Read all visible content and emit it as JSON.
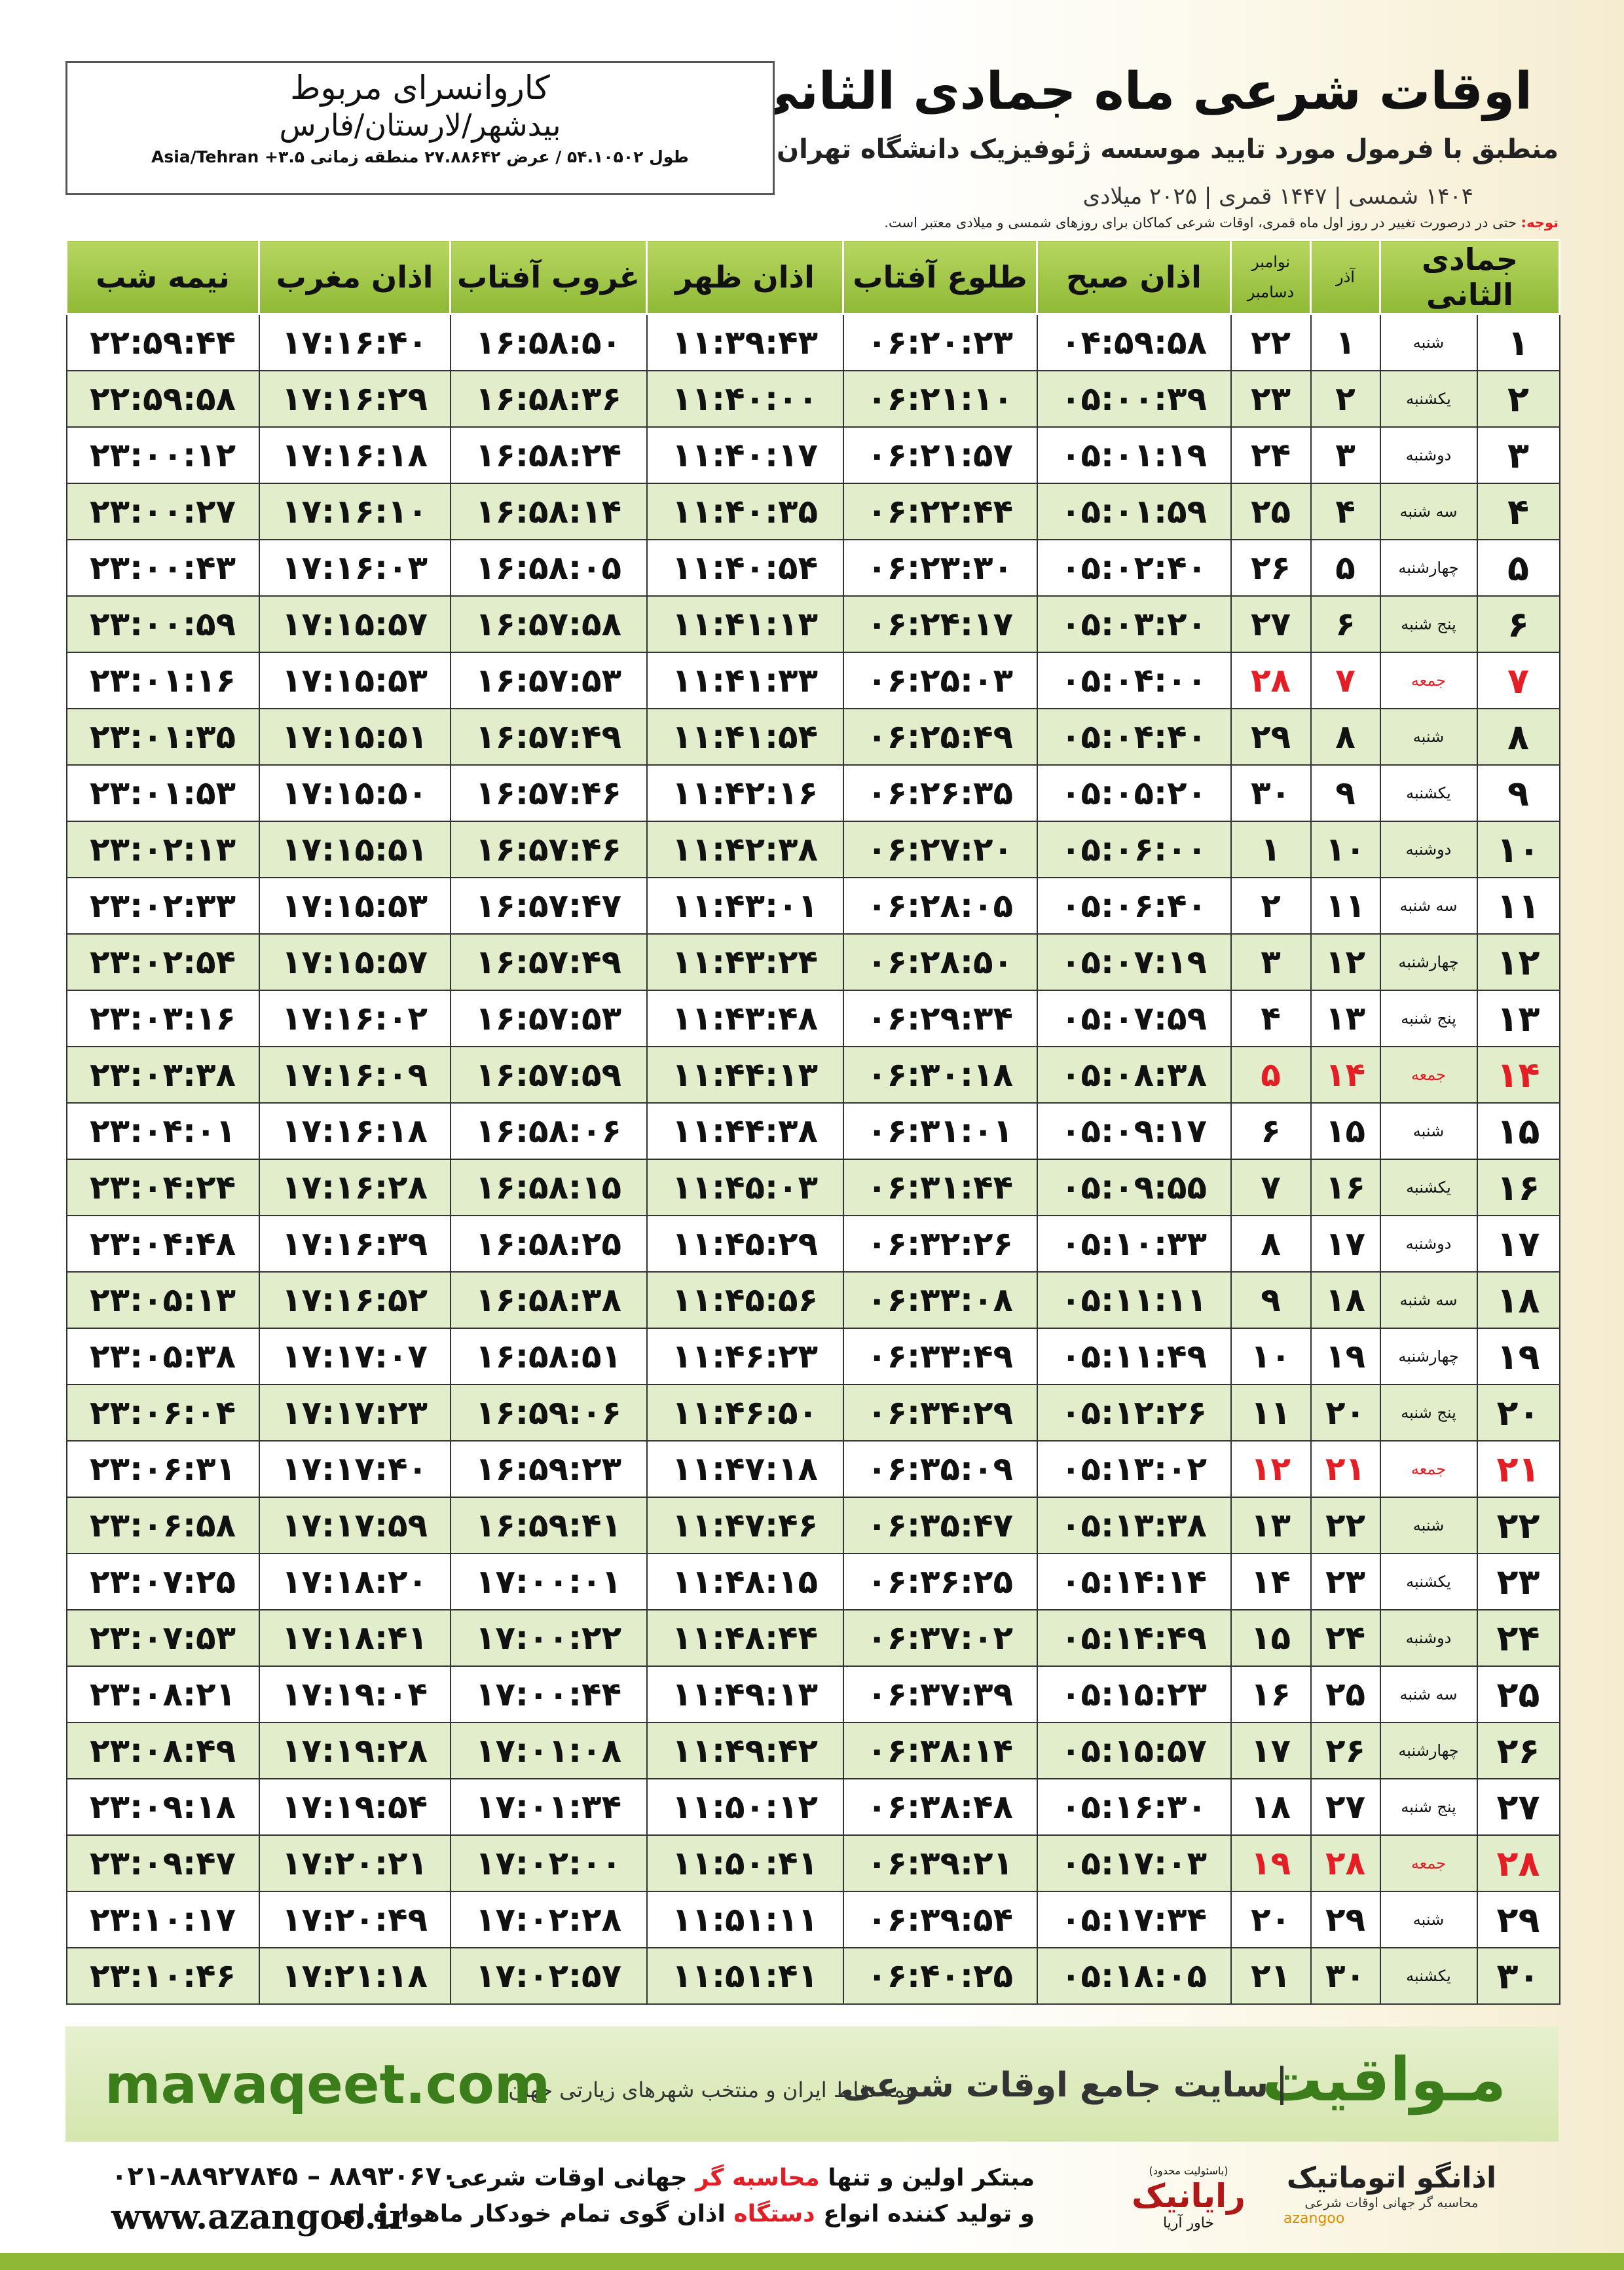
{
  "header": {
    "title": "اوقات شرعی ماه جمادی الثانی",
    "subtitle": "منطبق با فرمول مورد تایید موسسه ژئوفیزیک دانشگاه تهران",
    "years": "۱۴۰۴ شمسی | ۱۴۴۷ قمری | ۲۰۲۵ میلادی"
  },
  "location": {
    "name": "کاروانسرای مربوط",
    "region": "بیدشهر/لارستان/فارس",
    "coords": "طول ۵۴.۱۰۵۰۲ / عرض ۲۷.۸۸۶۴۲ منطقه زمانی ۳.۵+ Asia/Tehran"
  },
  "note": {
    "label": "توجه:",
    "text": "حتی در درصورت تغییر در روز اول ماه قمری، اوقات شرعی کماکان برای روزهای شمسی و میلادی معتبر است."
  },
  "table": {
    "headers": {
      "month": "جمادی الثانی",
      "azar": "آذر",
      "greg_top": "نوامبر",
      "greg_bottom": "دسامبر",
      "times": [
        "اذان صبح",
        "طلوع آفتاب",
        "اذان ظهر",
        "غروب آفتاب",
        "اذان مغرب",
        "نیمه شب"
      ]
    },
    "rows": [
      {
        "cells": [
          "۱",
          "شنبه",
          "۱",
          "۲۲",
          "۰۴:۵۹:۵۸",
          "۰۶:۲۰:۲۳",
          "۱۱:۳۹:۴۳",
          "۱۶:۵۸:۵۰",
          "۱۷:۱۶:۴۰",
          "۲۲:۵۹:۴۴"
        ]
      },
      {
        "cells": [
          "۲",
          "یکشنبه",
          "۲",
          "۲۳",
          "۰۵:۰۰:۳۹",
          "۰۶:۲۱:۱۰",
          "۱۱:۴۰:۰۰",
          "۱۶:۵۸:۳۶",
          "۱۷:۱۶:۲۹",
          "۲۲:۵۹:۵۸"
        ]
      },
      {
        "cells": [
          "۳",
          "دوشنبه",
          "۳",
          "۲۴",
          "۰۵:۰۱:۱۹",
          "۰۶:۲۱:۵۷",
          "۱۱:۴۰:۱۷",
          "۱۶:۵۸:۲۴",
          "۱۷:۱۶:۱۸",
          "۲۳:۰۰:۱۲"
        ]
      },
      {
        "cells": [
          "۴",
          "سه شنبه",
          "۴",
          "۲۵",
          "۰۵:۰۱:۵۹",
          "۰۶:۲۲:۴۴",
          "۱۱:۴۰:۳۵",
          "۱۶:۵۸:۱۴",
          "۱۷:۱۶:۱۰",
          "۲۳:۰۰:۲۷"
        ]
      },
      {
        "cells": [
          "۵",
          "چهارشنبه",
          "۵",
          "۲۶",
          "۰۵:۰۲:۴۰",
          "۰۶:۲۳:۳۰",
          "۱۱:۴۰:۵۴",
          "۱۶:۵۸:۰۵",
          "۱۷:۱۶:۰۳",
          "۲۳:۰۰:۴۳"
        ]
      },
      {
        "cells": [
          "۶",
          "پنج شنبه",
          "۶",
          "۲۷",
          "۰۵:۰۳:۲۰",
          "۰۶:۲۴:۱۷",
          "۱۱:۴۱:۱۳",
          "۱۶:۵۷:۵۸",
          "۱۷:۱۵:۵۷",
          "۲۳:۰۰:۵۹"
        ]
      },
      {
        "cells": [
          "۷",
          "جمعه",
          "۷",
          "۲۸",
          "۰۵:۰۴:۰۰",
          "۰۶:۲۵:۰۳",
          "۱۱:۴۱:۳۳",
          "۱۶:۵۷:۵۳",
          "۱۷:۱۵:۵۳",
          "۲۳:۰۱:۱۶"
        ],
        "color": "#e31e24"
      },
      {
        "cells": [
          "۸",
          "شنبه",
          "۸",
          "۲۹",
          "۰۵:۰۴:۴۰",
          "۰۶:۲۵:۴۹",
          "۱۱:۴۱:۵۴",
          "۱۶:۵۷:۴۹",
          "۱۷:۱۵:۵۱",
          "۲۳:۰۱:۳۵"
        ]
      },
      {
        "cells": [
          "۹",
          "یکشنبه",
          "۹",
          "۳۰",
          "۰۵:۰۵:۲۰",
          "۰۶:۲۶:۳۵",
          "۱۱:۴۲:۱۶",
          "۱۶:۵۷:۴۶",
          "۱۷:۱۵:۵۰",
          "۲۳:۰۱:۵۳"
        ]
      },
      {
        "cells": [
          "۱۰",
          "دوشنبه",
          "۱۰",
          "۱",
          "۰۵:۰۶:۰۰",
          "۰۶:۲۷:۲۰",
          "۱۱:۴۲:۳۸",
          "۱۶:۵۷:۴۶",
          "۱۷:۱۵:۵۱",
          "۲۳:۰۲:۱۳"
        ]
      },
      {
        "cells": [
          "۱۱",
          "سه شنبه",
          "۱۱",
          "۲",
          "۰۵:۰۶:۴۰",
          "۰۶:۲۸:۰۵",
          "۱۱:۴۳:۰۱",
          "۱۶:۵۷:۴۷",
          "۱۷:۱۵:۵۳",
          "۲۳:۰۲:۳۳"
        ]
      },
      {
        "cells": [
          "۱۲",
          "چهارشنبه",
          "۱۲",
          "۳",
          "۰۵:۰۷:۱۹",
          "۰۶:۲۸:۵۰",
          "۱۱:۴۳:۲۴",
          "۱۶:۵۷:۴۹",
          "۱۷:۱۵:۵۷",
          "۲۳:۰۲:۵۴"
        ]
      },
      {
        "cells": [
          "۱۳",
          "پنج شنبه",
          "۱۳",
          "۴",
          "۰۵:۰۷:۵۹",
          "۰۶:۲۹:۳۴",
          "۱۱:۴۳:۴۸",
          "۱۶:۵۷:۵۳",
          "۱۷:۱۶:۰۲",
          "۲۳:۰۳:۱۶"
        ]
      },
      {
        "cells": [
          "۱۴",
          "جمعه",
          "۱۴",
          "۵",
          "۰۵:۰۸:۳۸",
          "۰۶:۳۰:۱۸",
          "۱۱:۴۴:۱۳",
          "۱۶:۵۷:۵۹",
          "۱۷:۱۶:۰۹",
          "۲۳:۰۳:۳۸"
        ],
        "color": "#e31e24"
      },
      {
        "cells": [
          "۱۵",
          "شنبه",
          "۱۵",
          "۶",
          "۰۵:۰۹:۱۷",
          "۰۶:۳۱:۰۱",
          "۱۱:۴۴:۳۸",
          "۱۶:۵۸:۰۶",
          "۱۷:۱۶:۱۸",
          "۲۳:۰۴:۰۱"
        ]
      },
      {
        "cells": [
          "۱۶",
          "یکشنبه",
          "۱۶",
          "۷",
          "۰۵:۰۹:۵۵",
          "۰۶:۳۱:۴۴",
          "۱۱:۴۵:۰۳",
          "۱۶:۵۸:۱۵",
          "۱۷:۱۶:۲۸",
          "۲۳:۰۴:۲۴"
        ]
      },
      {
        "cells": [
          "۱۷",
          "دوشنبه",
          "۱۷",
          "۸",
          "۰۵:۱۰:۳۳",
          "۰۶:۳۲:۲۶",
          "۱۱:۴۵:۲۹",
          "۱۶:۵۸:۲۵",
          "۱۷:۱۶:۳۹",
          "۲۳:۰۴:۴۸"
        ]
      },
      {
        "cells": [
          "۱۸",
          "سه شنبه",
          "۱۸",
          "۹",
          "۰۵:۱۱:۱۱",
          "۰۶:۳۳:۰۸",
          "۱۱:۴۵:۵۶",
          "۱۶:۵۸:۳۸",
          "۱۷:۱۶:۵۲",
          "۲۳:۰۵:۱۳"
        ]
      },
      {
        "cells": [
          "۱۹",
          "چهارشنبه",
          "۱۹",
          "۱۰",
          "۰۵:۱۱:۴۹",
          "۰۶:۳۳:۴۹",
          "۱۱:۴۶:۲۳",
          "۱۶:۵۸:۵۱",
          "۱۷:۱۷:۰۷",
          "۲۳:۰۵:۳۸"
        ]
      },
      {
        "cells": [
          "۲۰",
          "پنج شنبه",
          "۲۰",
          "۱۱",
          "۰۵:۱۲:۲۶",
          "۰۶:۳۴:۲۹",
          "۱۱:۴۶:۵۰",
          "۱۶:۵۹:۰۶",
          "۱۷:۱۷:۲۳",
          "۲۳:۰۶:۰۴"
        ]
      },
      {
        "cells": [
          "۲۱",
          "جمعه",
          "۲۱",
          "۱۲",
          "۰۵:۱۳:۰۲",
          "۰۶:۳۵:۰۹",
          "۱۱:۴۷:۱۸",
          "۱۶:۵۹:۲۳",
          "۱۷:۱۷:۴۰",
          "۲۳:۰۶:۳۱"
        ],
        "color": "#e31e24"
      },
      {
        "cells": [
          "۲۲",
          "شنبه",
          "۲۲",
          "۱۳",
          "۰۵:۱۳:۳۸",
          "۰۶:۳۵:۴۷",
          "۱۱:۴۷:۴۶",
          "۱۶:۵۹:۴۱",
          "۱۷:۱۷:۵۹",
          "۲۳:۰۶:۵۸"
        ]
      },
      {
        "cells": [
          "۲۳",
          "یکشنبه",
          "۲۳",
          "۱۴",
          "۰۵:۱۴:۱۴",
          "۰۶:۳۶:۲۵",
          "۱۱:۴۸:۱۵",
          "۱۷:۰۰:۰۱",
          "۱۷:۱۸:۲۰",
          "۲۳:۰۷:۲۵"
        ]
      },
      {
        "cells": [
          "۲۴",
          "دوشنبه",
          "۲۴",
          "۱۵",
          "۰۵:۱۴:۴۹",
          "۰۶:۳۷:۰۲",
          "۱۱:۴۸:۴۴",
          "۱۷:۰۰:۲۲",
          "۱۷:۱۸:۴۱",
          "۲۳:۰۷:۵۳"
        ]
      },
      {
        "cells": [
          "۲۵",
          "سه شنبه",
          "۲۵",
          "۱۶",
          "۰۵:۱۵:۲۳",
          "۰۶:۳۷:۳۹",
          "۱۱:۴۹:۱۳",
          "۱۷:۰۰:۴۴",
          "۱۷:۱۹:۰۴",
          "۲۳:۰۸:۲۱"
        ]
      },
      {
        "cells": [
          "۲۶",
          "چهارشنبه",
          "۲۶",
          "۱۷",
          "۰۵:۱۵:۵۷",
          "۰۶:۳۸:۱۴",
          "۱۱:۴۹:۴۲",
          "۱۷:۰۱:۰۸",
          "۱۷:۱۹:۲۸",
          "۲۳:۰۸:۴۹"
        ]
      },
      {
        "cells": [
          "۲۷",
          "پنج شنبه",
          "۲۷",
          "۱۸",
          "۰۵:۱۶:۳۰",
          "۰۶:۳۸:۴۸",
          "۱۱:۵۰:۱۲",
          "۱۷:۰۱:۳۴",
          "۱۷:۱۹:۵۴",
          "۲۳:۰۹:۱۸"
        ]
      },
      {
        "cells": [
          "۲۸",
          "جمعه",
          "۲۸",
          "۱۹",
          "۰۵:۱۷:۰۳",
          "۰۶:۳۹:۲۱",
          "۱۱:۵۰:۴۱",
          "۱۷:۰۲:۰۰",
          "۱۷:۲۰:۲۱",
          "۲۳:۰۹:۴۷"
        ],
        "color": "#e31e24"
      },
      {
        "cells": [
          "۲۹",
          "شنبه",
          "۲۹",
          "۲۰",
          "۰۵:۱۷:۳۴",
          "۰۶:۳۹:۵۴",
          "۱۱:۵۱:۱۱",
          "۱۷:۰۲:۲۸",
          "۱۷:۲۰:۴۹",
          "۲۳:۱۰:۱۷"
        ]
      },
      {
        "cells": [
          "۳۰",
          "یکشنبه",
          "۳۰",
          "۲۱",
          "۰۵:۱۸:۰۵",
          "۰۶:۴۰:۲۵",
          "۱۱:۵۱:۴۱",
          "۱۷:۰۲:۵۷",
          "۱۷:۲۱:۱۸",
          "۲۳:۱۰:۴۶"
        ]
      }
    ]
  },
  "banner": {
    "brand": "مـواقیت",
    "slogan": "سایت جامع اوقات شرعی",
    "tagline": "همه نقاط ایران و منتخب شهرهای زیارتی جهان",
    "site": "mavaqeet.com"
  },
  "footer": {
    "phone": "۰۲۱-۸۸۹۲۷۸۴۵ – ۸۸۹۳۰۶۷۰",
    "site": "www.azangoo.ir",
    "line1": [
      "مبتکر اولین و تنها",
      "محاسبه گر",
      "جهانی اوقات شرعی"
    ],
    "line2": [
      "و تولید کننده انواع",
      "دستگاه",
      "اذان گوی تمام خودکار ماهواره ای"
    ],
    "logo1": {
      "note": "(باسئولیت محدود)",
      "name": "رایانیک",
      "sub": "خاور آریا"
    },
    "logo2": {
      "name": "اذانگو اتوماتیک",
      "sub": "محاسبه گر جهانی اوقات شرعی",
      "latin": "azangoo"
    }
  }
}
